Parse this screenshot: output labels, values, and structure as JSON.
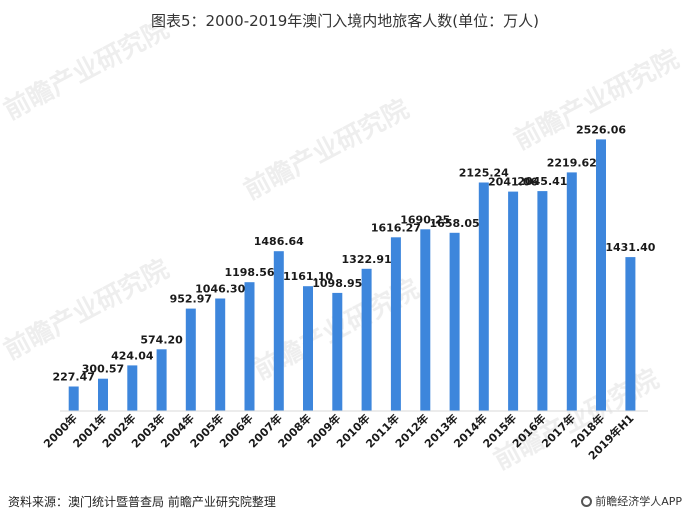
{
  "title": "图表5：2000-2019年澳门入境内地旅客人数(单位：万人)",
  "source": "资料来源：澳门统计暨普查局 前瞻产业研究院整理",
  "brand": "前瞻经济学人APP",
  "watermark": "前瞻产业研究院",
  "colors": {
    "bar": "#3d86dc",
    "axis": "#d9d9d9"
  },
  "chart_data": {
    "type": "bar",
    "categories": [
      "2000年",
      "2001年",
      "2002年",
      "2003年",
      "2004年",
      "2005年",
      "2006年",
      "2007年",
      "2008年",
      "2009年",
      "2010年",
      "2011年",
      "2012年",
      "2013年",
      "2014年",
      "2015年",
      "2016年",
      "2017年",
      "2018年",
      "2019年H1"
    ],
    "values": [
      227.47,
      300.57,
      424.04,
      574.2,
      952.97,
      1046.3,
      1198.56,
      1486.64,
      1161.1,
      1098.95,
      1322.91,
      1616.27,
      1690.25,
      1658.05,
      2125.24,
      2041.06,
      2045.41,
      2219.62,
      2526.06,
      1431.4
    ],
    "labels": [
      "227.47",
      "300.57",
      "424.04",
      "574.20",
      "952.97",
      "1046.30",
      "1198.56",
      "1486.64",
      "1161.10",
      "1098.95",
      "1322.91",
      "1616.27",
      "1690.25",
      "1658.05",
      "2125.24",
      "2041.06",
      "2045.41",
      "2219.62",
      "2526.06",
      "1431.40"
    ],
    "ylim": [
      0,
      2800
    ]
  }
}
